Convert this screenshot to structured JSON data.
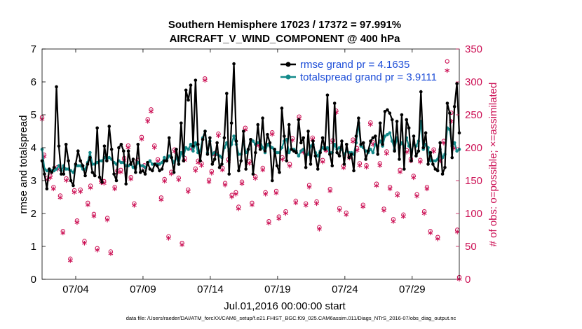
{
  "chart_data": {
    "type": "line",
    "title": "Southern Hemisphere 17023 / 17372 = 97.991%",
    "subtitle": "AIRCRAFT_V_WIND_COMPONENT @ 400 hPa",
    "xlabel": "Jul.01,2016 00:00:00 start",
    "ylabel": "rmse and totalspread",
    "y2label": "# of obs: o=possible; ×=assimilated",
    "footnote": "data file: /Users/raeder/DAI/ATM_forcXX/CAM6_setup/f.e21.FHIST_BGC.f09_025.CAM6assim.011/Diags_NTrS_2016-07/obs_diag_output.nc",
    "xlim": [
      1,
      32
    ],
    "ylim": [
      0,
      7
    ],
    "y2lim": [
      0,
      350
    ],
    "x_ticks": [
      3.5,
      8.5,
      13.5,
      18.5,
      23.5,
      28.5
    ],
    "x_tick_labels": [
      "07/04",
      "07/09",
      "07/14",
      "07/19",
      "07/24",
      "07/29"
    ],
    "y_ticks": [
      "0",
      "1",
      "2",
      "3",
      "4",
      "5",
      "6",
      "7"
    ],
    "y2_ticks": [
      "0",
      "50",
      "100",
      "150",
      "200",
      "250",
      "300",
      "350"
    ],
    "colors": {
      "rmse": "#000000",
      "spread": "#138a8a",
      "obs": "#cc1155",
      "legend_text": "#1f4fd8"
    },
    "series": [
      {
        "name": "rmse grand pr = 4.1635",
        "values": [
          3.6,
          3.2,
          2.75,
          3.35,
          3.25,
          3.4,
          5.85,
          4.05,
          3.2,
          3.2,
          4.1,
          3.6,
          3.0,
          2.85,
          3.5,
          3.9,
          3.6,
          3.45,
          3.15,
          3.5,
          3.7,
          3.25,
          3.15,
          4.6,
          3.1,
          2.95,
          4.05,
          3.6,
          4.65,
          3.95,
          3.2,
          3.0,
          4.0,
          4.1,
          3.9,
          2.9,
          3.9,
          3.5,
          3.65,
          3.25,
          4.1,
          3.25,
          3.3,
          3.2,
          3.55,
          3.35,
          3.3,
          3.5,
          3.45,
          3.3,
          3.35,
          3.6,
          3.6,
          4.3,
          3.7,
          3.25,
          3.95,
          3.5,
          4.75,
          3.6,
          5.75,
          5.45,
          5.9,
          4.05,
          6.05,
          4.1,
          3.6,
          4.25,
          4.5,
          3.8,
          4.3,
          3.5,
          3.65,
          4.15,
          3.4,
          3.5,
          4.3,
          5.65,
          3.2,
          4.75,
          6.55,
          4.2,
          3.3,
          3.6,
          4.5,
          3.35,
          3.95,
          4.25,
          3.2,
          3.85,
          4.7,
          3.95,
          4.9,
          3.9,
          4.4,
          4.15,
          3.0,
          3.95,
          3.45,
          3.25,
          5.2,
          4.35,
          3.6,
          4.7,
          3.95,
          3.9,
          3.85,
          4.85,
          4.15,
          4.3,
          3.4,
          4.5,
          3.5,
          4.2,
          3.75,
          3.35,
          3.85,
          4.3,
          3.95,
          5.6,
          3.8,
          3.45,
          5.35,
          3.85,
          3.75,
          4.2,
          3.5,
          4.1,
          3.7,
          3.8,
          3.3,
          4.35,
          4.9,
          4.1,
          4.15,
          3.65,
          3.9,
          4.2,
          4.3,
          4.35,
          3.8,
          4.75,
          4.1,
          5.1,
          5.15,
          5.05,
          4.85,
          3.9,
          4.8,
          3.65,
          5.0,
          3.35,
          4.85,
          4.6,
          3.6,
          4.35,
          3.75,
          3.9,
          5.7,
          4.0,
          4.45,
          3.5,
          3.85,
          3.5,
          3.35,
          3.3,
          4.15,
          3.2,
          3.4,
          5.35,
          5.05,
          3.7,
          5.25,
          5.95,
          4.45
        ]
      },
      {
        "name": "totalspread grand pr = 3.9111",
        "values": [
          3.95,
          3.35,
          3.3,
          3.3,
          3.3,
          3.3,
          3.35,
          3.45,
          3.3,
          3.45,
          3.35,
          3.35,
          3.3,
          3.25,
          3.45,
          3.45,
          3.45,
          3.35,
          3.35,
          3.55,
          3.85,
          3.5,
          3.5,
          3.55,
          3.6,
          3.6,
          3.7,
          3.65,
          3.7,
          3.65,
          3.55,
          3.5,
          3.6,
          3.55,
          3.55,
          3.45,
          3.45,
          3.5,
          3.4,
          3.4,
          3.55,
          3.45,
          3.45,
          3.4,
          3.5,
          3.6,
          3.5,
          3.5,
          3.5,
          3.5,
          3.55,
          3.7,
          3.6,
          3.75,
          3.7,
          3.55,
          3.7,
          3.5,
          3.85,
          3.75,
          4.0,
          3.95,
          4.1,
          3.9,
          4.15,
          3.85,
          3.9,
          4.3,
          4.5,
          3.85,
          4.2,
          3.8,
          3.85,
          3.8,
          3.75,
          3.7,
          4.0,
          4.15,
          3.9,
          4.1,
          4.35,
          4.1,
          3.8,
          3.8,
          4.2,
          3.85,
          3.95,
          4.25,
          4.2,
          4.1,
          4.15,
          4.2,
          4.0,
          3.85,
          4.1,
          4.05,
          4.0,
          3.9,
          3.85,
          3.85,
          4.0,
          4.2,
          4.25,
          3.85,
          3.95,
          3.95,
          3.9,
          3.75,
          3.9,
          3.95,
          3.75,
          3.8,
          4.05,
          4.1,
          3.85,
          3.75,
          3.9,
          4.0,
          3.95,
          4.0,
          3.85,
          3.85,
          4.1,
          3.95,
          4.0,
          3.95,
          3.8,
          3.9,
          3.85,
          3.85,
          3.8,
          4.15,
          4.75,
          4.05,
          4.0,
          3.9,
          3.85,
          3.95,
          3.85,
          4.1,
          4.05,
          4.2,
          4.05,
          4.35,
          4.4,
          4.45,
          4.2,
          3.95,
          4.3,
          4.0,
          4.15,
          4.0,
          4.3,
          4.05,
          3.9,
          4.1,
          4.05,
          4.2,
          4.8,
          3.95,
          4.1,
          4.0,
          3.6,
          3.6,
          3.6,
          3.65,
          3.95,
          3.7,
          3.8,
          4.6,
          4.55,
          4.05,
          4.15,
          3.9,
          3.95
        ]
      }
    ],
    "obs_possible": [
      [
        1.0,
        243
      ],
      [
        1.15,
        186
      ],
      [
        1.4,
        151
      ],
      [
        1.6,
        154
      ],
      [
        1.85,
        137
      ],
      [
        2.15,
        167
      ],
      [
        2.35,
        124
      ],
      [
        2.55,
        70
      ],
      [
        2.8,
        150
      ],
      [
        3.1,
        28
      ],
      [
        3.4,
        132
      ],
      [
        3.6,
        86
      ],
      [
        3.85,
        133
      ],
      [
        4.15,
        55
      ],
      [
        4.4,
        113
      ],
      [
        4.6,
        139
      ],
      [
        4.85,
        96
      ],
      [
        5.1,
        44
      ],
      [
        5.4,
        147
      ],
      [
        5.6,
        146
      ],
      [
        5.85,
        90
      ],
      [
        6.1,
        39
      ],
      [
        6.4,
        137
      ],
      [
        6.6,
        162
      ],
      [
        6.85,
        163
      ],
      [
        7.1,
        181
      ],
      [
        7.4,
        200
      ],
      [
        7.6,
        152
      ],
      [
        7.85,
        112
      ],
      [
        8.1,
        178
      ],
      [
        8.4,
        213
      ],
      [
        8.6,
        170
      ],
      [
        8.85,
        240
      ],
      [
        9.1,
        255
      ],
      [
        9.35,
        200
      ],
      [
        9.6,
        179
      ],
      [
        9.85,
        121
      ],
      [
        10.1,
        149
      ],
      [
        10.4,
        62
      ],
      [
        10.6,
        160
      ],
      [
        10.85,
        194
      ],
      [
        11.15,
        151
      ],
      [
        11.4,
        52
      ],
      [
        11.6,
        181
      ],
      [
        11.85,
        133
      ],
      [
        12.1,
        198
      ],
      [
        12.4,
        165
      ],
      [
        12.6,
        177
      ],
      [
        12.85,
        173
      ],
      [
        13.1,
        302
      ],
      [
        13.4,
        148
      ],
      [
        13.6,
        161
      ],
      [
        13.85,
        189
      ],
      [
        14.1,
        218
      ],
      [
        14.4,
        166
      ],
      [
        14.6,
        143
      ],
      [
        14.85,
        179
      ],
      [
        15.1,
        125
      ],
      [
        15.4,
        129
      ],
      [
        15.6,
        107
      ],
      [
        15.85,
        145
      ],
      [
        16.1,
        227
      ],
      [
        16.4,
        176
      ],
      [
        16.6,
        113
      ],
      [
        16.85,
        153
      ],
      [
        17.1,
        203
      ],
      [
        17.4,
        166
      ],
      [
        17.6,
        129
      ],
      [
        17.85,
        85
      ],
      [
        18.1,
        220
      ],
      [
        18.4,
        131
      ],
      [
        18.6,
        92
      ],
      [
        18.85,
        182
      ],
      [
        19.1,
        100
      ],
      [
        19.4,
        172
      ],
      [
        19.6,
        211
      ],
      [
        19.85,
        116
      ],
      [
        20.1,
        244
      ],
      [
        20.4,
        193
      ],
      [
        20.6,
        112
      ],
      [
        20.85,
        140
      ],
      [
        21.1,
        212
      ],
      [
        21.4,
        115
      ],
      [
        21.6,
        76
      ],
      [
        21.85,
        178
      ],
      [
        22.1,
        195
      ],
      [
        22.4,
        134
      ],
      [
        22.6,
        208
      ],
      [
        22.85,
        253
      ],
      [
        23.1,
        105
      ],
      [
        23.4,
        169
      ],
      [
        23.6,
        98
      ],
      [
        23.85,
        184
      ],
      [
        24.1,
        209
      ],
      [
        24.4,
        196
      ],
      [
        24.6,
        173
      ],
      [
        24.85,
        110
      ],
      [
        25.1,
        170
      ],
      [
        25.4,
        235
      ],
      [
        25.6,
        205
      ],
      [
        25.85,
        142
      ],
      [
        26.1,
        173
      ],
      [
        26.4,
        104
      ],
      [
        26.6,
        191
      ],
      [
        26.85,
        137
      ],
      [
        27.1,
        88
      ],
      [
        27.4,
        127
      ],
      [
        27.6,
        163
      ],
      [
        27.85,
        95
      ],
      [
        28.1,
        193
      ],
      [
        28.4,
        180
      ],
      [
        28.6,
        154
      ],
      [
        28.85,
        126
      ],
      [
        29.1,
        178
      ],
      [
        29.4,
        100
      ],
      [
        29.6,
        137
      ],
      [
        29.85,
        70
      ],
      [
        30.1,
        194
      ],
      [
        30.4,
        61
      ],
      [
        30.6,
        180
      ],
      [
        30.85,
        207
      ],
      [
        31.1,
        328
      ],
      [
        31.4,
        250
      ],
      [
        31.6,
        199
      ],
      [
        31.85,
        72
      ],
      [
        32.0,
        0
      ]
    ],
    "obs_assimilated": [
      [
        1.0,
        243
      ],
      [
        1.15,
        186
      ],
      [
        1.4,
        151
      ],
      [
        1.6,
        154
      ],
      [
        1.85,
        137
      ],
      [
        2.15,
        167
      ],
      [
        2.35,
        124
      ],
      [
        2.55,
        70
      ],
      [
        2.8,
        150
      ],
      [
        3.1,
        28
      ],
      [
        3.4,
        132
      ],
      [
        3.6,
        86
      ],
      [
        3.85,
        133
      ],
      [
        4.15,
        55
      ],
      [
        4.4,
        113
      ],
      [
        4.6,
        139
      ],
      [
        4.85,
        96
      ],
      [
        5.1,
        44
      ],
      [
        5.4,
        147
      ],
      [
        5.6,
        146
      ],
      [
        5.85,
        90
      ],
      [
        6.1,
        39
      ],
      [
        6.4,
        137
      ],
      [
        6.6,
        162
      ],
      [
        6.85,
        163
      ],
      [
        7.1,
        181
      ],
      [
        7.4,
        200
      ],
      [
        7.6,
        152
      ],
      [
        7.85,
        112
      ],
      [
        8.1,
        178
      ],
      [
        8.4,
        213
      ],
      [
        8.6,
        170
      ],
      [
        8.85,
        240
      ],
      [
        9.1,
        255
      ],
      [
        9.35,
        200
      ],
      [
        9.6,
        179
      ],
      [
        9.85,
        121
      ],
      [
        10.1,
        149
      ],
      [
        10.4,
        62
      ],
      [
        10.6,
        160
      ],
      [
        10.85,
        194
      ],
      [
        11.15,
        151
      ],
      [
        11.4,
        52
      ],
      [
        11.6,
        181
      ],
      [
        11.85,
        133
      ],
      [
        12.1,
        198
      ],
      [
        12.4,
        165
      ],
      [
        12.6,
        177
      ],
      [
        12.85,
        173
      ],
      [
        13.1,
        302
      ],
      [
        13.4,
        148
      ],
      [
        13.6,
        161
      ],
      [
        13.85,
        189
      ],
      [
        14.1,
        218
      ],
      [
        14.4,
        166
      ],
      [
        14.6,
        143
      ],
      [
        14.85,
        179
      ],
      [
        15.1,
        125
      ],
      [
        15.4,
        129
      ],
      [
        15.6,
        107
      ],
      [
        15.85,
        145
      ],
      [
        16.1,
        227
      ],
      [
        16.4,
        176
      ],
      [
        16.6,
        113
      ],
      [
        16.85,
        153
      ],
      [
        17.1,
        203
      ],
      [
        17.4,
        166
      ],
      [
        17.6,
        129
      ],
      [
        17.85,
        85
      ],
      [
        18.1,
        220
      ],
      [
        18.4,
        131
      ],
      [
        18.6,
        92
      ],
      [
        18.85,
        182
      ],
      [
        19.1,
        100
      ],
      [
        19.4,
        172
      ],
      [
        19.6,
        211
      ],
      [
        19.85,
        116
      ],
      [
        20.1,
        244
      ],
      [
        20.4,
        193
      ],
      [
        20.6,
        112
      ],
      [
        20.85,
        140
      ],
      [
        21.1,
        212
      ],
      [
        21.4,
        115
      ],
      [
        21.6,
        76
      ],
      [
        21.85,
        178
      ],
      [
        22.1,
        195
      ],
      [
        22.4,
        134
      ],
      [
        22.6,
        208
      ],
      [
        22.85,
        253
      ],
      [
        23.1,
        105
      ],
      [
        23.4,
        169
      ],
      [
        23.6,
        98
      ],
      [
        23.85,
        184
      ],
      [
        24.1,
        209
      ],
      [
        24.4,
        196
      ],
      [
        24.6,
        173
      ],
      [
        24.85,
        110
      ],
      [
        25.1,
        170
      ],
      [
        25.4,
        235
      ],
      [
        25.6,
        205
      ],
      [
        25.85,
        142
      ],
      [
        26.1,
        173
      ],
      [
        26.4,
        104
      ],
      [
        26.6,
        191
      ],
      [
        26.85,
        137
      ],
      [
        27.1,
        88
      ],
      [
        27.4,
        127
      ],
      [
        27.6,
        163
      ],
      [
        27.85,
        95
      ],
      [
        28.1,
        193
      ],
      [
        28.4,
        180
      ],
      [
        28.6,
        154
      ],
      [
        28.85,
        126
      ],
      [
        29.1,
        178
      ],
      [
        29.4,
        100
      ],
      [
        29.6,
        137
      ],
      [
        29.85,
        70
      ],
      [
        30.1,
        194
      ],
      [
        30.4,
        61
      ],
      [
        30.6,
        180
      ],
      [
        30.85,
        207
      ],
      [
        31.1,
        317
      ],
      [
        31.4,
        240
      ],
      [
        31.6,
        199
      ],
      [
        31.85,
        72
      ],
      [
        32.0,
        0
      ]
    ]
  }
}
